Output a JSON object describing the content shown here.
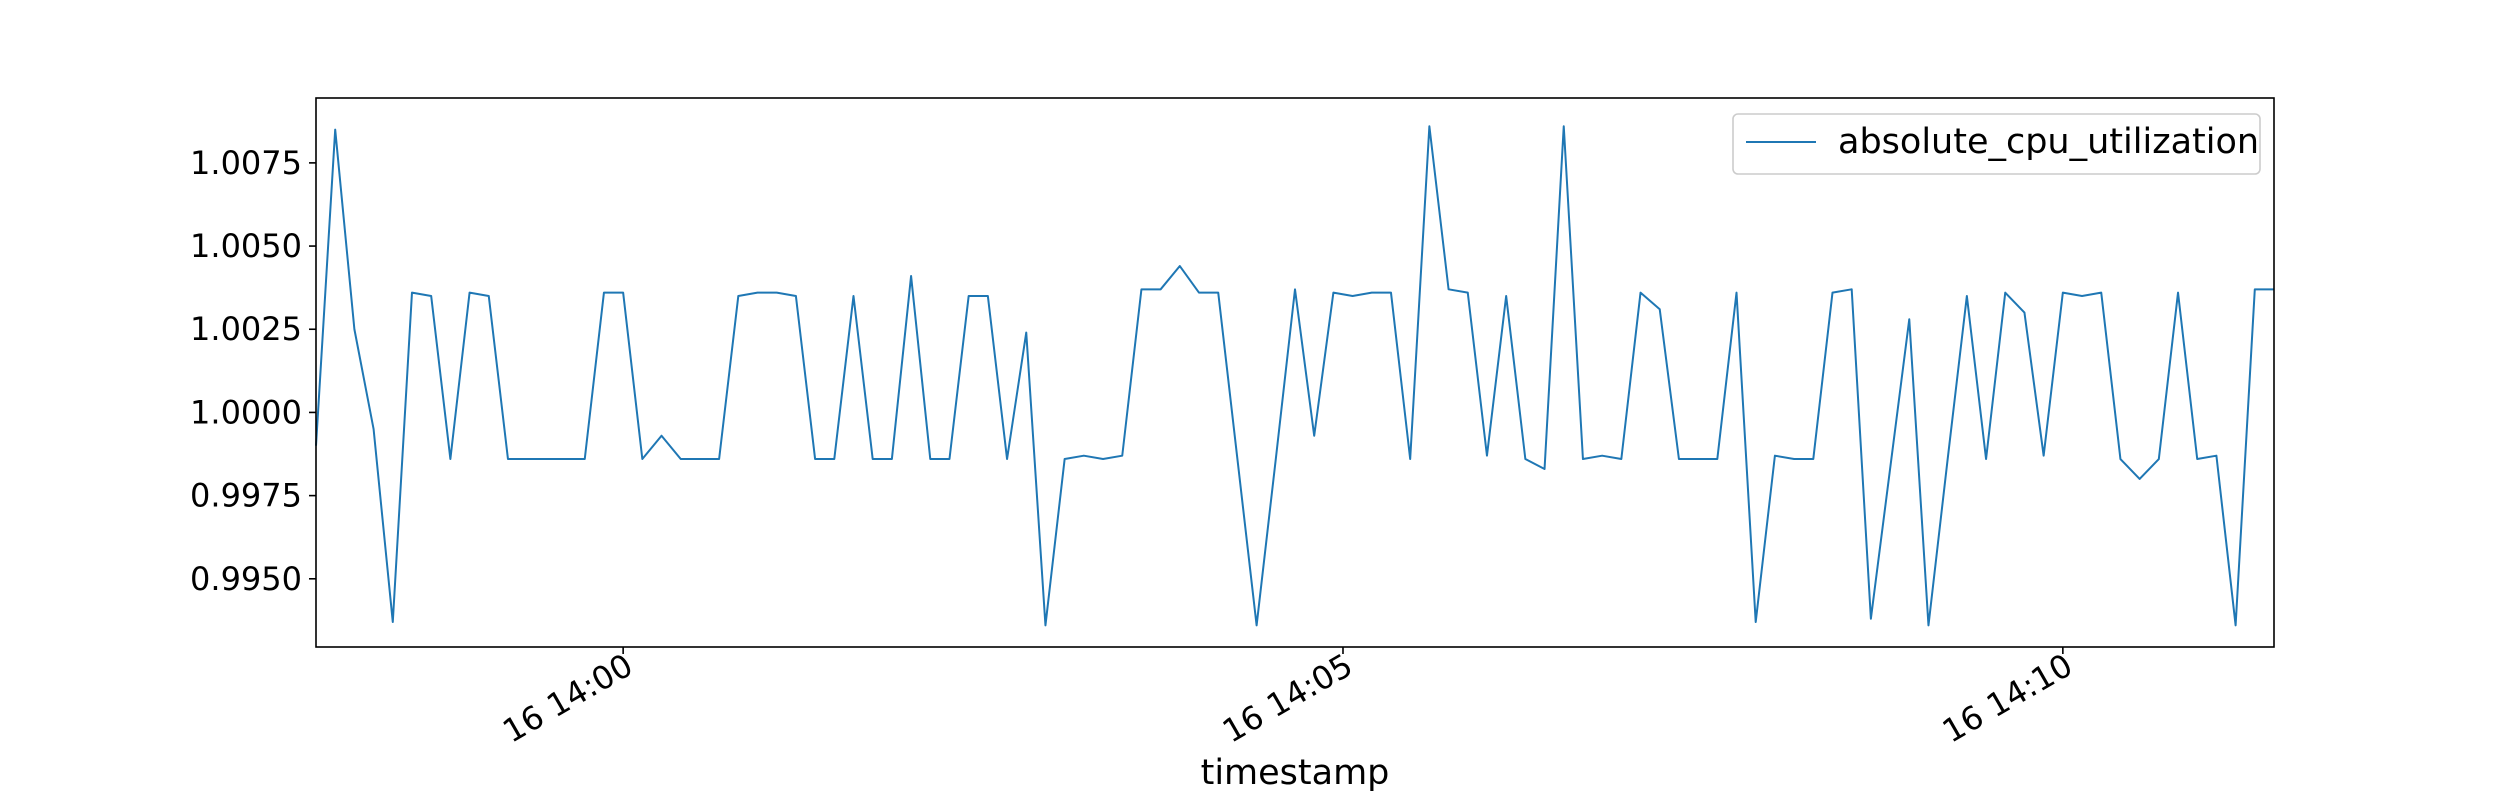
{
  "chart_data": {
    "type": "line",
    "title": "",
    "xlabel": "timestamp",
    "ylabel": "",
    "grid": false,
    "legend": "top-right",
    "line_color": "#1f77b4",
    "x_range": [
      "16 13:57:52",
      "16 14:11:28"
    ],
    "ylim": [
      0.99295,
      1.00945
    ],
    "x_ticks": [
      {
        "time": "16 14:00:00",
        "label": "16 14:00"
      },
      {
        "time": "16 14:05:00",
        "label": "16 14:05"
      },
      {
        "time": "16 14:10:00",
        "label": "16 14:10"
      }
    ],
    "y_ticks": [
      {
        "value": 0.995,
        "label": "0.9950"
      },
      {
        "value": 0.9975,
        "label": "0.9975"
      },
      {
        "value": 1.0,
        "label": "1.0000"
      },
      {
        "value": 1.0025,
        "label": "1.0025"
      },
      {
        "value": 1.005,
        "label": "1.0050"
      },
      {
        "value": 1.0075,
        "label": "1.0075"
      }
    ],
    "series": [
      {
        "name": "absolute_cpu_utilization",
        "x": [
          "16 13:57:52",
          "16 13:58:00",
          "16 13:58:08",
          "16 13:58:16",
          "16 13:58:24",
          "16 13:58:32",
          "16 13:58:40",
          "16 13:58:48",
          "16 13:58:56",
          "16 13:59:04",
          "16 13:59:12",
          "16 13:59:20",
          "16 13:59:28",
          "16 13:59:36",
          "16 13:59:44",
          "16 13:59:52",
          "16 14:00:00",
          "16 14:00:08",
          "16 14:00:16",
          "16 14:00:24",
          "16 14:00:32",
          "16 14:00:40",
          "16 14:00:48",
          "16 14:00:56",
          "16 14:01:04",
          "16 14:01:12",
          "16 14:01:20",
          "16 14:01:28",
          "16 14:01:36",
          "16 14:01:44",
          "16 14:01:52",
          "16 14:02:00",
          "16 14:02:08",
          "16 14:02:16",
          "16 14:02:24",
          "16 14:02:32",
          "16 14:02:40",
          "16 14:02:48",
          "16 14:02:56",
          "16 14:03:04",
          "16 14:03:12",
          "16 14:03:20",
          "16 14:03:28",
          "16 14:03:36",
          "16 14:03:44",
          "16 14:03:52",
          "16 14:04:00",
          "16 14:04:08",
          "16 14:04:16",
          "16 14:04:24",
          "16 14:04:32",
          "16 14:04:40",
          "16 14:04:48",
          "16 14:04:56",
          "16 14:05:04",
          "16 14:05:12",
          "16 14:05:20",
          "16 14:05:28",
          "16 14:05:36",
          "16 14:05:44",
          "16 14:05:52",
          "16 14:06:00",
          "16 14:06:08",
          "16 14:06:16",
          "16 14:06:24",
          "16 14:06:32",
          "16 14:06:40",
          "16 14:06:48",
          "16 14:06:56",
          "16 14:07:04",
          "16 14:07:12",
          "16 14:07:20",
          "16 14:07:28",
          "16 14:07:36",
          "16 14:07:44",
          "16 14:07:52",
          "16 14:08:00",
          "16 14:08:08",
          "16 14:08:16",
          "16 14:08:24",
          "16 14:08:32",
          "16 14:08:40",
          "16 14:08:48",
          "16 14:08:56",
          "16 14:09:04",
          "16 14:09:12",
          "16 14:09:20",
          "16 14:09:28",
          "16 14:09:36",
          "16 14:09:44",
          "16 14:09:52",
          "16 14:10:00",
          "16 14:10:08",
          "16 14:10:16",
          "16 14:10:24",
          "16 14:10:32",
          "16 14:10:40",
          "16 14:10:48",
          "16 14:10:56",
          "16 14:11:04",
          "16 14:11:12",
          "16 14:11:20",
          "16 14:11:28"
        ],
        "values": [
          0.999,
          1.0085,
          1.0025,
          0.9995,
          0.9937,
          1.0036,
          1.0035,
          0.9986,
          1.0036,
          1.0035,
          0.9986,
          0.9986,
          0.9986,
          0.9986,
          0.9986,
          1.0036,
          1.0036,
          0.9986,
          0.9993,
          0.9986,
          0.9986,
          0.9986,
          1.0035,
          1.0036,
          1.0036,
          1.0035,
          0.9986,
          0.9986,
          1.0035,
          0.9986,
          0.9986,
          1.0041,
          0.9986,
          0.9986,
          1.0035,
          1.0035,
          0.9986,
          1.0024,
          0.9936,
          0.9986,
          0.9987,
          0.9986,
          0.9987,
          1.0037,
          1.0037,
          1.0044,
          1.0036,
          1.0036,
          0.9986,
          0.9936,
          0.9986,
          1.0037,
          0.9993,
          1.0036,
          1.0035,
          1.0036,
          1.0036,
          0.9986,
          1.0086,
          1.0037,
          1.0036,
          0.9987,
          1.0035,
          0.9986,
          0.9983,
          1.0086,
          0.9986,
          0.9987,
          0.9986,
          1.0036,
          1.0031,
          0.9986,
          0.9986,
          0.9986,
          1.0036,
          0.9937,
          0.9987,
          0.9986,
          0.9986,
          1.0036,
          1.0037,
          0.9938,
          0.9983,
          1.0028,
          0.9936,
          0.9986,
          1.0035,
          0.9986,
          1.0036,
          1.003,
          0.9987,
          1.0036,
          1.0035,
          1.0036,
          0.9986,
          0.998,
          0.9986,
          1.0036,
          0.9986,
          0.9987,
          0.9936,
          1.0037,
          1.0037
        ]
      }
    ]
  }
}
